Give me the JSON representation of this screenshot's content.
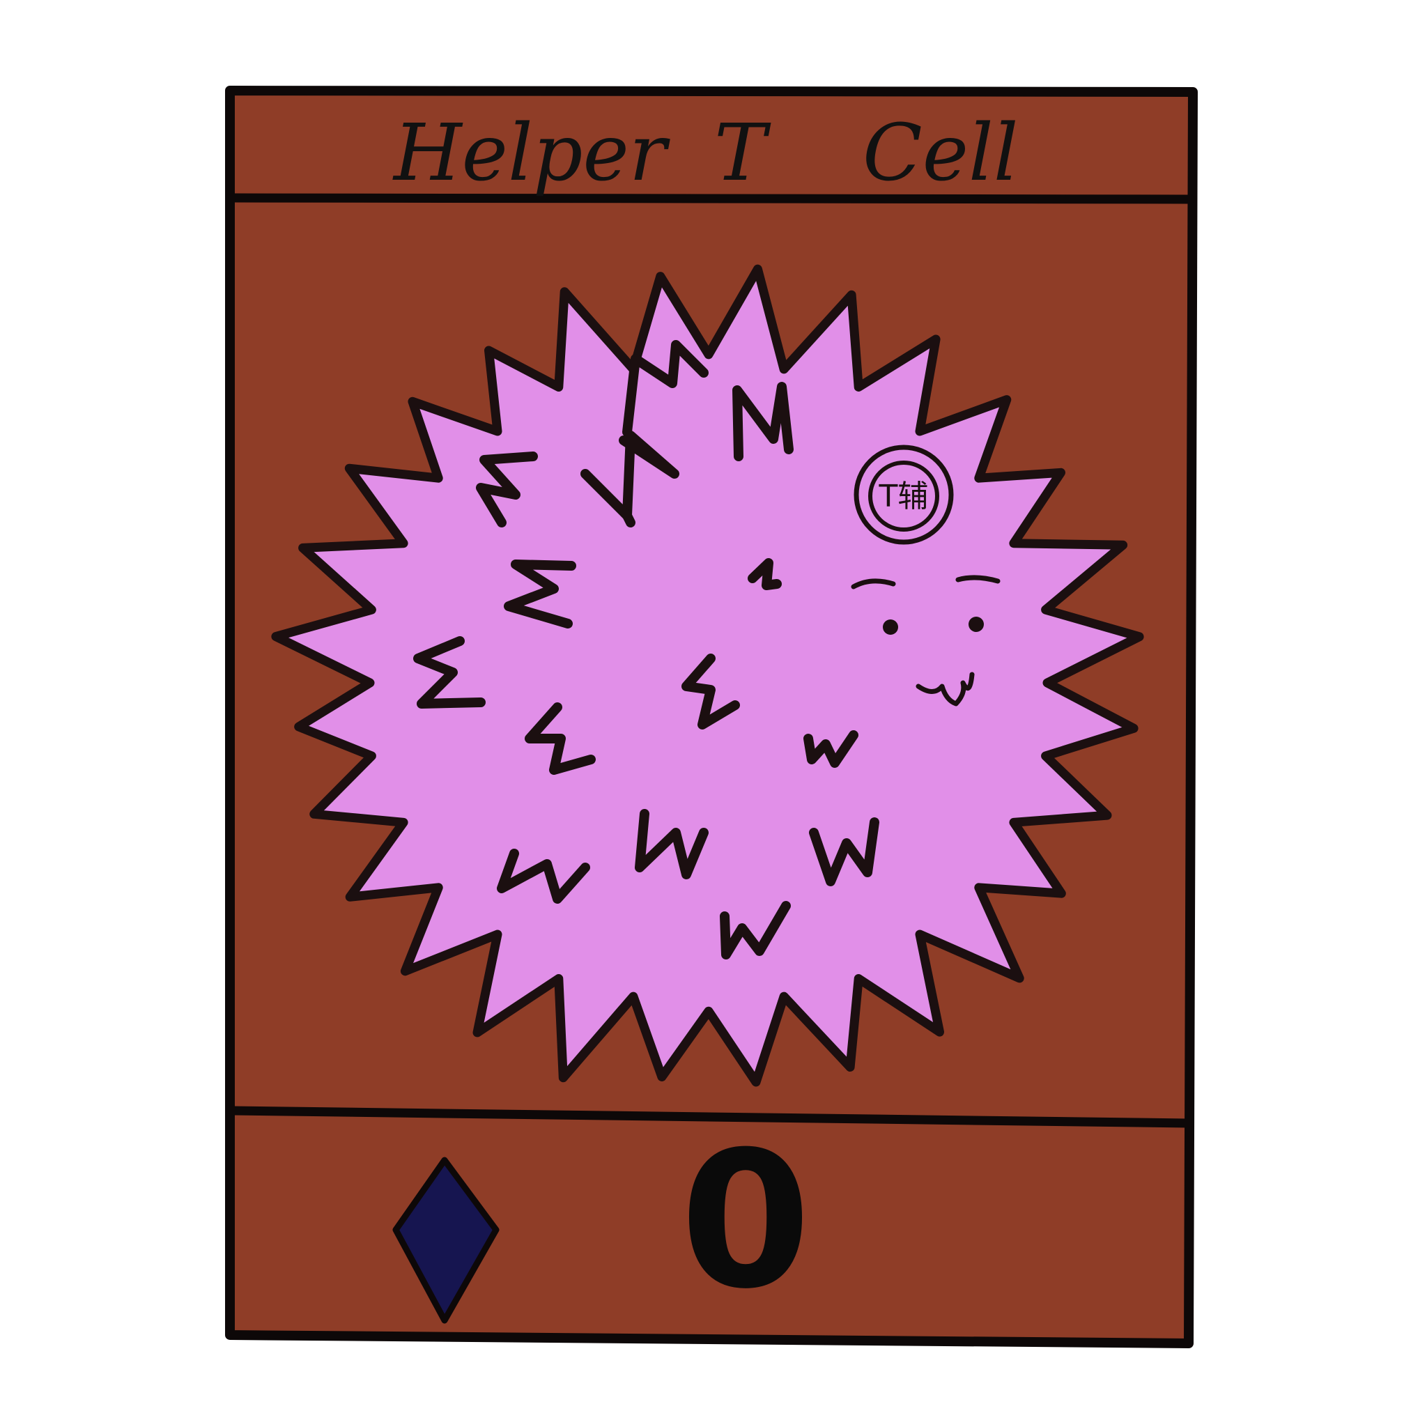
{
  "card": {
    "title_word_1": "Helper",
    "title_word_2": "T",
    "title_word_3": "Cell",
    "badge_label": "T辅",
    "cost_value": "0"
  },
  "colors": {
    "card_background": "#8f3d27",
    "card_border": "#0d0808",
    "cell_body": "#e18fe8",
    "cell_outline": "#1b0f10",
    "gem_fill": "#161550",
    "page_background": "#ffffff"
  },
  "icons": {
    "cell": "helper-t-cell-illustration",
    "gem": "blue-diamond-gem-icon",
    "badge": "t-badge-icon"
  }
}
